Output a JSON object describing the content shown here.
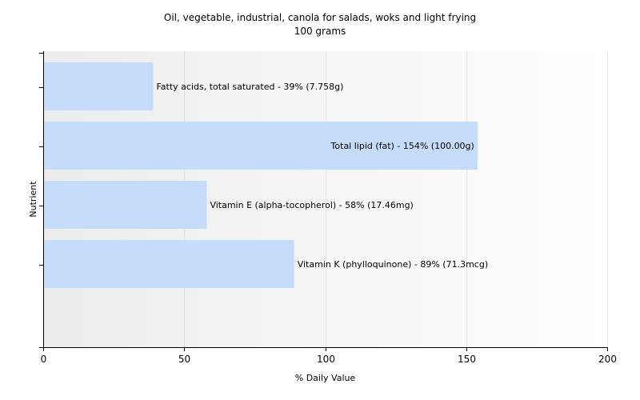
{
  "chart_data": {
    "type": "bar",
    "orientation": "horizontal",
    "title": "Oil, vegetable, industrial, canola for salads, woks and light frying",
    "subtitle": "100 grams",
    "xlabel": "% Daily Value",
    "ylabel": "Nutrient",
    "xlim": [
      0,
      200
    ],
    "xticks": [
      0,
      50,
      100,
      150,
      200
    ],
    "grid": true,
    "categories": [
      "Fatty acids, total saturated",
      "Total lipid (fat)",
      "Vitamin E (alpha-tocopherol)",
      "Vitamin K (phylloquinone)"
    ],
    "values": [
      39,
      154,
      58,
      89
    ],
    "data_labels": [
      "Fatty acids, total saturated - 39% (7.758g)",
      "Total lipid (fat) - 154% (100.00g)",
      "Vitamin E (alpha-tocopherol) - 58% (17.46mg)",
      "Vitamin K (phylloquinone) - 89% (71.3mcg)"
    ],
    "bar_color": "#c5dcfb",
    "gridline_color": "#e2e2e2",
    "background_gradient": [
      "#ececec",
      "#ffffff"
    ]
  }
}
